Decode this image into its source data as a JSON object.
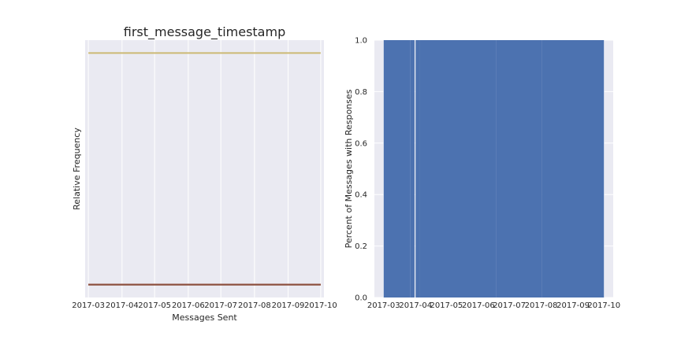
{
  "chart_data": [
    {
      "type": "line",
      "title": "first_message_timestamp",
      "xlabel": "Messages Sent",
      "ylabel": "Relative Frequency",
      "x_ticks": [
        "2017-03",
        "2017-04",
        "2017-05",
        "2017-06",
        "2017-07",
        "2017-08",
        "2017-09",
        "2017-10"
      ],
      "xlim": [
        "2017-02-26",
        "2017-10-04"
      ],
      "y_tick_labels_shown": false,
      "ylim": [
        0,
        1
      ],
      "grid": true,
      "series": [
        {
          "color": "#CCB974",
          "x": [
            "2017-03-01",
            "2017-10-01"
          ],
          "values": [
            0.95,
            0.95
          ]
        },
        {
          "color": "#55A868",
          "x": [
            "2017-03-01",
            "2017-10-01"
          ],
          "values": [
            0.05,
            0.05
          ]
        },
        {
          "color": "#C44E52",
          "x": [
            "2017-03-01",
            "2017-10-01"
          ],
          "values": [
            0.05,
            0.05
          ]
        },
        {
          "color": "#8C4F3E",
          "x": [
            "2017-03-01",
            "2017-10-01"
          ],
          "values": [
            0.05,
            0.05
          ]
        }
      ]
    },
    {
      "type": "bar",
      "title": "",
      "xlabel": "",
      "ylabel": "Percent of Messages with Responses",
      "x_ticks": [
        "2017-03",
        "2017-04",
        "2017-05",
        "2017-06",
        "2017-07",
        "2017-08",
        "2017-09",
        "2017-10"
      ],
      "y_ticks": [
        "0.0",
        "0.2",
        "0.4",
        "0.6",
        "0.8",
        "1.0"
      ],
      "xlim": [
        "2017-02-20",
        "2017-10-10"
      ],
      "ylim": [
        0,
        1
      ],
      "grid": true,
      "bar_color": "#4C72B0",
      "bars": [
        {
          "start": "2017-03-01",
          "end": "2017-03-26",
          "value": 1.0
        },
        {
          "start": "2017-03-27",
          "end": "2017-03-30",
          "value": 1.0
        },
        {
          "start": "2017-04-01",
          "end": "2017-04-04",
          "value": 1.0
        },
        {
          "start": "2017-04-05",
          "end": "2017-06-15",
          "value": 1.0
        },
        {
          "start": "2017-06-16",
          "end": "2017-06-17",
          "value": 1.0
        },
        {
          "start": "2017-06-18",
          "end": "2017-08-01",
          "value": 1.0
        },
        {
          "start": "2017-08-02",
          "end": "2017-09-30",
          "value": 1.0
        }
      ]
    }
  ]
}
